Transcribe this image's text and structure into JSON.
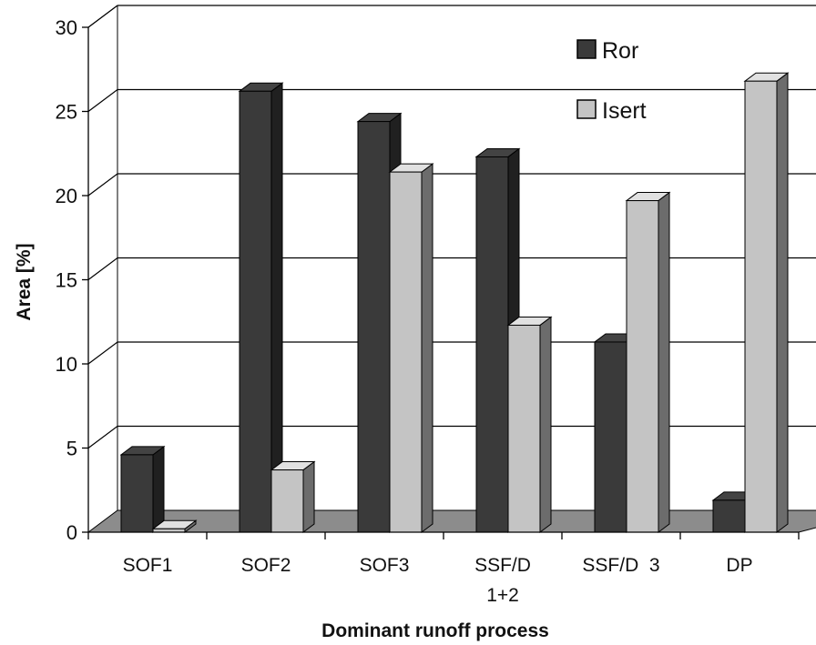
{
  "chart_data": {
    "type": "bar",
    "title": "",
    "xlabel": "Dominant runoff process",
    "ylabel": "Area [%]",
    "ylim": [
      0,
      30
    ],
    "yticks": [
      0,
      5,
      10,
      15,
      20,
      25,
      30
    ],
    "categories": [
      [
        "SOF1"
      ],
      [
        "SOF2"
      ],
      [
        "SOF3"
      ],
      [
        "SSF/D",
        "1+2"
      ],
      [
        "SSF/D  3"
      ],
      [
        "DP"
      ]
    ],
    "series": [
      {
        "name": "Ror",
        "color": "#3a3a3a",
        "values": [
          4.6,
          26.2,
          24.4,
          22.3,
          11.3,
          1.9
        ]
      },
      {
        "name": "Isert",
        "color": "#c4c4c4",
        "values": [
          0.2,
          3.7,
          21.4,
          12.3,
          19.7,
          26.8
        ]
      }
    ],
    "grid": true,
    "legend_position": "top-right",
    "style": "3d-clustered-column"
  }
}
